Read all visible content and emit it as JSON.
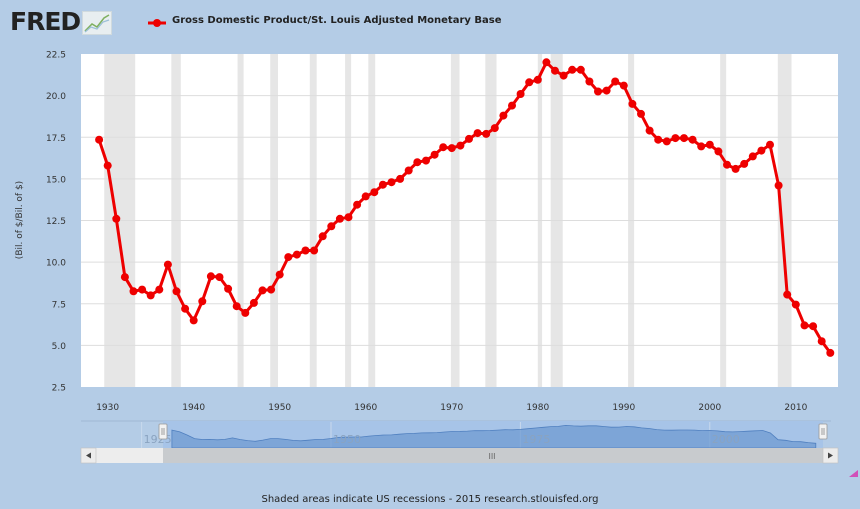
{
  "header": {
    "logo_text": "FRED",
    "logo_icon": "line-graph-icon",
    "legend_label": "Gross Domestic Product/St. Louis Adjusted Monetary Base",
    "legend_color": "#ee0000"
  },
  "footer": {
    "text": "Shaded areas indicate US recessions - 2015 research.stlouisfed.org"
  },
  "navigator": {
    "labels": [
      "1925",
      "1950",
      "1975",
      "2000"
    ],
    "scroll_left_icon": "arrow-left-icon",
    "scroll_right_icon": "arrow-right-icon",
    "scroll_grip": "III"
  },
  "colors": {
    "page_bg": "#b4cce6",
    "plot_bg": "#ffffff",
    "recession": "#e6e6e6",
    "grid": "#dddddd",
    "series": "#ee0000",
    "navigator_fill": "#6f9bd1",
    "navigator_window": "#a7c4e8",
    "scrollbar_track": "#c8cbce",
    "scrollbar_thumb": "#ededed"
  },
  "chart_data": {
    "type": "line",
    "title": "Gross Domestic Product/St. Louis Adjusted Monetary Base",
    "xlabel": "",
    "ylabel": "(Bil. of $/Bil. of $)",
    "xlim": [
      1926.9,
      2014.9
    ],
    "ylim": [
      2.5,
      22.5
    ],
    "x_ticks": [
      1930,
      1940,
      1950,
      1960,
      1970,
      1980,
      1990,
      2000,
      2010
    ],
    "y_ticks": [
      "2.5",
      "5.0",
      "7.5",
      "10.0",
      "12.5",
      "15.0",
      "17.5",
      "20.0",
      "22.5"
    ],
    "grid": true,
    "legend_position": "top",
    "recessions": [
      [
        1929.6,
        1933.2
      ],
      [
        1937.4,
        1938.5
      ],
      [
        1945.1,
        1945.8
      ],
      [
        1948.9,
        1949.8
      ],
      [
        1953.5,
        1954.3
      ],
      [
        1957.6,
        1958.3
      ],
      [
        1960.3,
        1961.1
      ],
      [
        1969.9,
        1970.9
      ],
      [
        1973.9,
        1975.2
      ],
      [
        1980.0,
        1980.5
      ],
      [
        1981.5,
        1982.9
      ],
      [
        1990.5,
        1991.2
      ],
      [
        2001.2,
        2001.9
      ],
      [
        2007.9,
        2009.5
      ]
    ],
    "series": [
      {
        "name": "Gross Domestic Product/St. Louis Adjusted Monetary Base",
        "x": [
          1929,
          1930,
          1931,
          1932,
          1933,
          1934,
          1935,
          1936,
          1937,
          1938,
          1939,
          1940,
          1941,
          1942,
          1943,
          1944,
          1945,
          1946,
          1947,
          1948,
          1949,
          1950,
          1951,
          1952,
          1953,
          1954,
          1955,
          1956,
          1957,
          1958,
          1959,
          1960,
          1961,
          1962,
          1963,
          1964,
          1965,
          1966,
          1967,
          1968,
          1969,
          1970,
          1971,
          1972,
          1973,
          1974,
          1975,
          1976,
          1977,
          1978,
          1979,
          1980,
          1981,
          1982,
          1983,
          1984,
          1985,
          1986,
          1987,
          1988,
          1989,
          1990,
          1991,
          1992,
          1993,
          1994,
          1995,
          1996,
          1997,
          1998,
          1999,
          2000,
          2001,
          2002,
          2003,
          2004,
          2005,
          2006,
          2007,
          2008,
          2009,
          2010,
          2011,
          2012,
          2013,
          2014
        ],
        "values": [
          17.35,
          15.8,
          12.6,
          9.1,
          8.25,
          8.35,
          8.0,
          8.35,
          9.85,
          8.25,
          7.2,
          6.5,
          7.65,
          9.15,
          9.1,
          8.4,
          7.35,
          6.95,
          7.55,
          8.3,
          8.35,
          9.25,
          10.3,
          10.45,
          10.7,
          10.7,
          11.55,
          12.15,
          12.6,
          12.7,
          13.45,
          13.95,
          14.2,
          14.65,
          14.8,
          15.0,
          15.5,
          16.0,
          16.1,
          16.45,
          16.9,
          16.85,
          17.0,
          17.4,
          17.75,
          17.7,
          18.05,
          18.8,
          19.4,
          20.1,
          20.8,
          20.95,
          22.0,
          21.5,
          21.2,
          21.55,
          21.55,
          20.85,
          20.25,
          20.3,
          20.85,
          20.6,
          19.5,
          18.9,
          17.9,
          17.35,
          17.25,
          17.45,
          17.45,
          17.35,
          16.95,
          17.05,
          16.65,
          15.85,
          15.6,
          15.9,
          16.35,
          16.7,
          17.05,
          14.6,
          8.05,
          7.45,
          6.2,
          6.15,
          5.25,
          4.55
        ]
      }
    ]
  }
}
